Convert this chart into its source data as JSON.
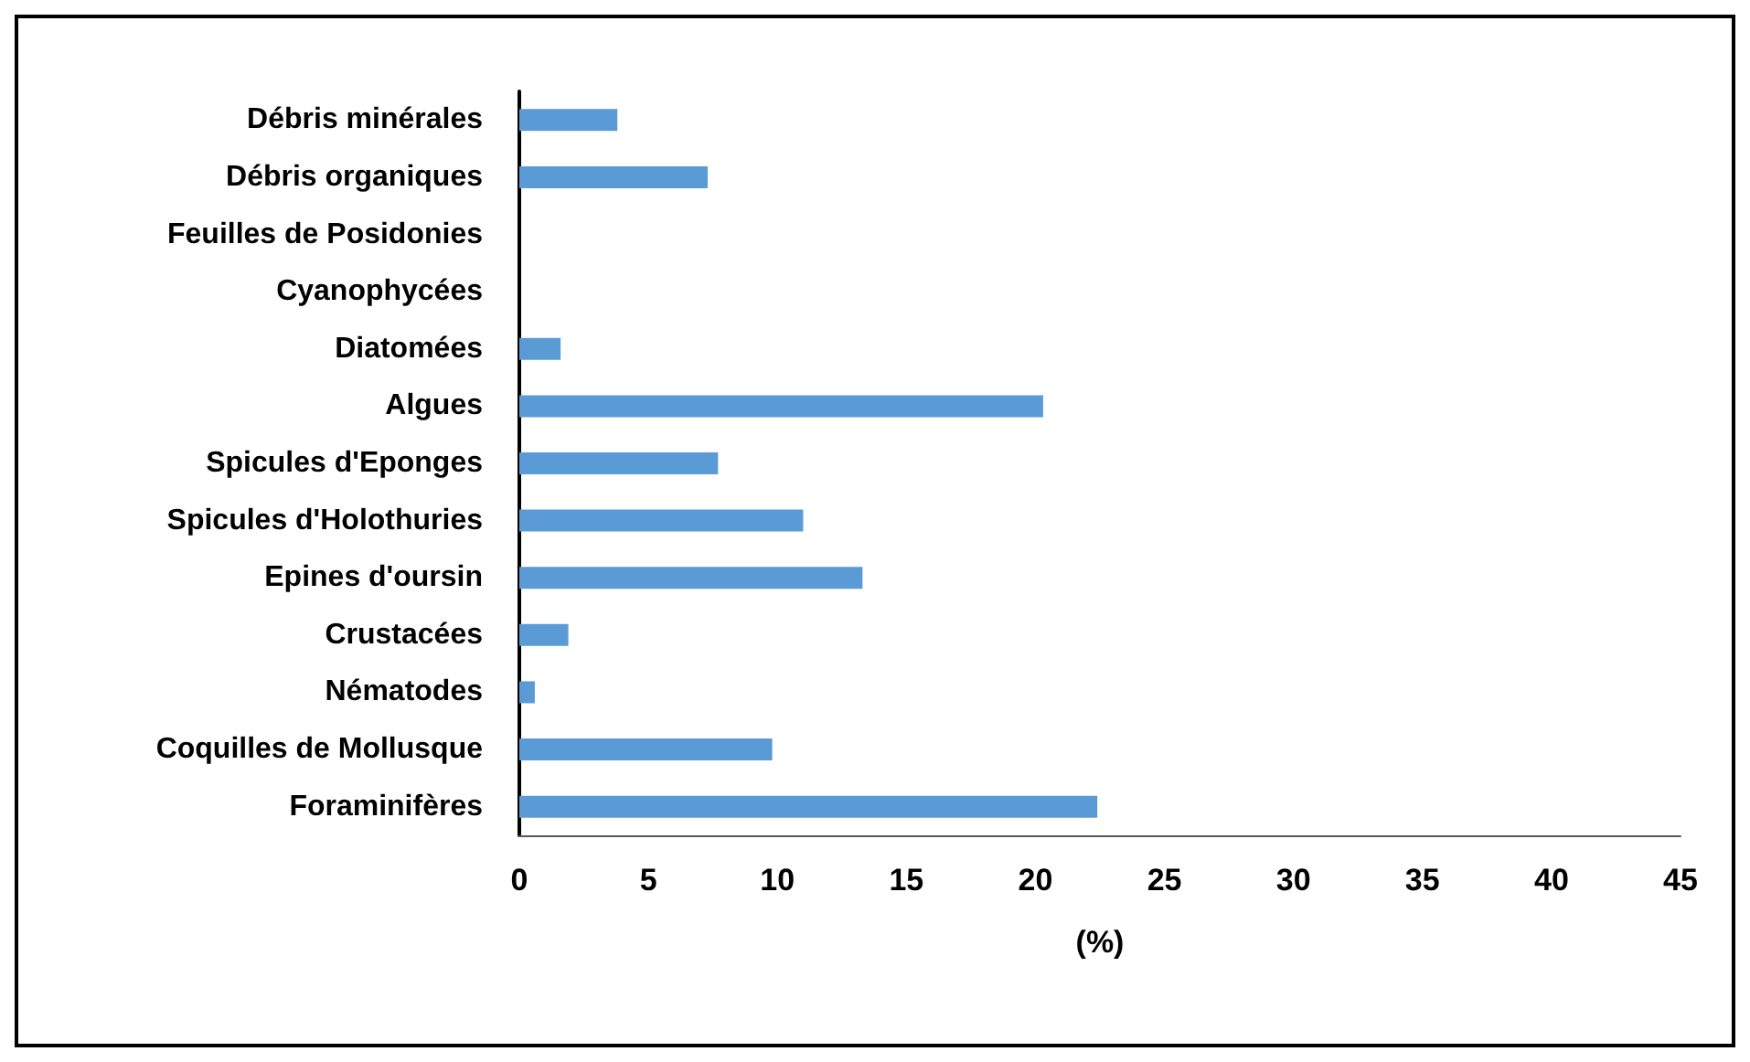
{
  "chart_data": {
    "type": "bar",
    "orientation": "horizontal",
    "xlabel": "(%)",
    "categories": [
      "Débris minérales",
      "Débris organiques",
      "Feuilles de Posidonies",
      "Cyanophycées",
      "Diatomées",
      "Algues",
      "Spicules d'Eponges",
      "Spicules d'Holothuries",
      "Epines d'oursin",
      "Crustacées",
      "Nématodes",
      "Coquilles de Mollusque",
      "Foraminifères"
    ],
    "values": [
      3.8,
      7.3,
      0,
      0,
      1.6,
      20.3,
      7.7,
      11.0,
      13.3,
      1.9,
      0.6,
      9.8,
      22.4
    ],
    "color": "#5b9bd5",
    "xlim": [
      0,
      45
    ],
    "xticks": [
      0,
      5,
      10,
      15,
      20,
      25,
      30,
      35,
      40,
      45
    ],
    "grid": false
  }
}
